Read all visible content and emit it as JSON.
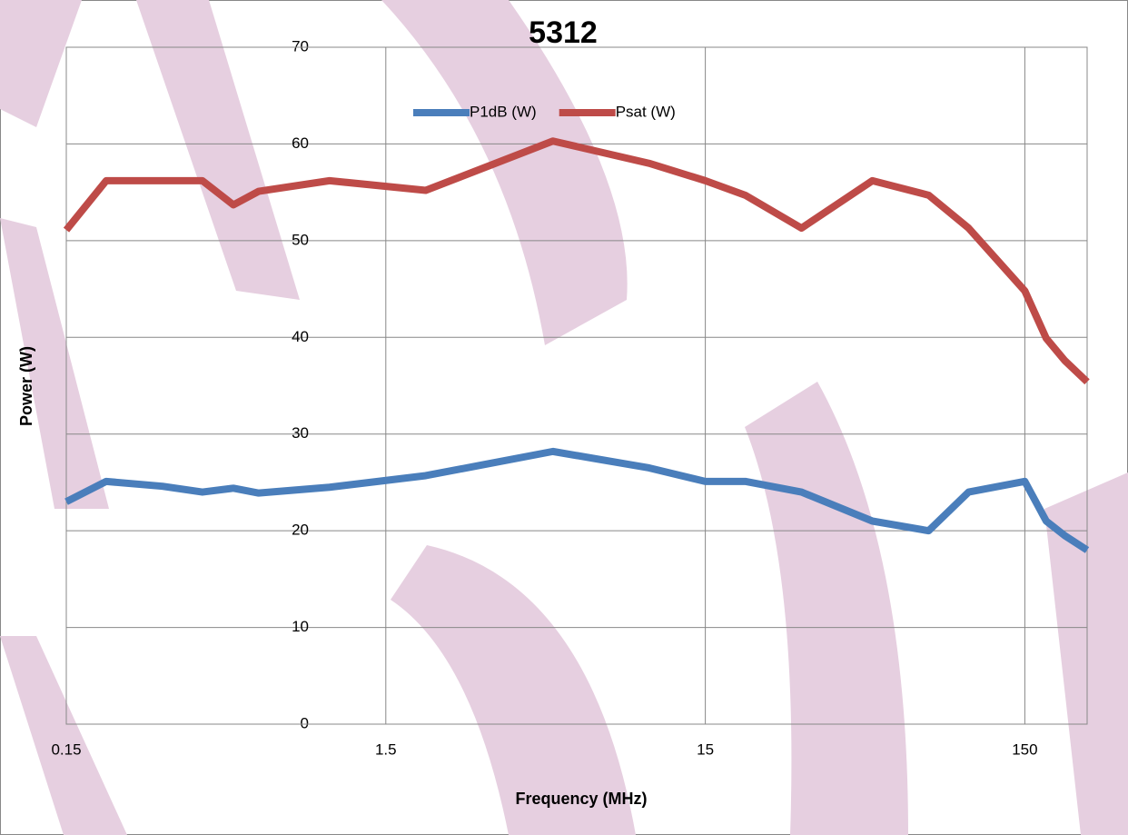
{
  "chart_data": {
    "type": "line",
    "title": "5312",
    "x_label": "Frequency (MHz)",
    "y_label": "Power (W)",
    "x": [
      0.15,
      0.2,
      0.3,
      0.4,
      0.5,
      0.6,
      1.0,
      2.0,
      5.0,
      10,
      15,
      20,
      30,
      50,
      75,
      100,
      150,
      175,
      200,
      235
    ],
    "series": [
      {
        "name": "P1dB (W)",
        "color": "#4a7ebb",
        "values": [
          23.0,
          25.1,
          24.6,
          24.0,
          24.4,
          23.9,
          24.5,
          25.7,
          28.2,
          26.5,
          25.1,
          25.1,
          24.0,
          21.0,
          20.0,
          24.0,
          25.1,
          21.0,
          19.5,
          18.0
        ]
      },
      {
        "name": "Psat (W)",
        "color": "#be4b48",
        "values": [
          51.1,
          56.2,
          56.2,
          56.2,
          53.7,
          55.1,
          56.2,
          55.2,
          60.3,
          58.0,
          56.2,
          54.7,
          51.3,
          56.2,
          54.7,
          51.3,
          44.8,
          39.9,
          37.6,
          35.4
        ]
      }
    ],
    "xscale": "log",
    "xlim": [
      0.15,
      235
    ],
    "xticks": [
      0.15,
      1.5,
      15,
      150
    ],
    "ylim": [
      0,
      70
    ],
    "yticks": [
      0,
      10,
      20,
      30,
      40,
      50,
      60,
      70
    ],
    "grid": true,
    "legend": "top"
  }
}
